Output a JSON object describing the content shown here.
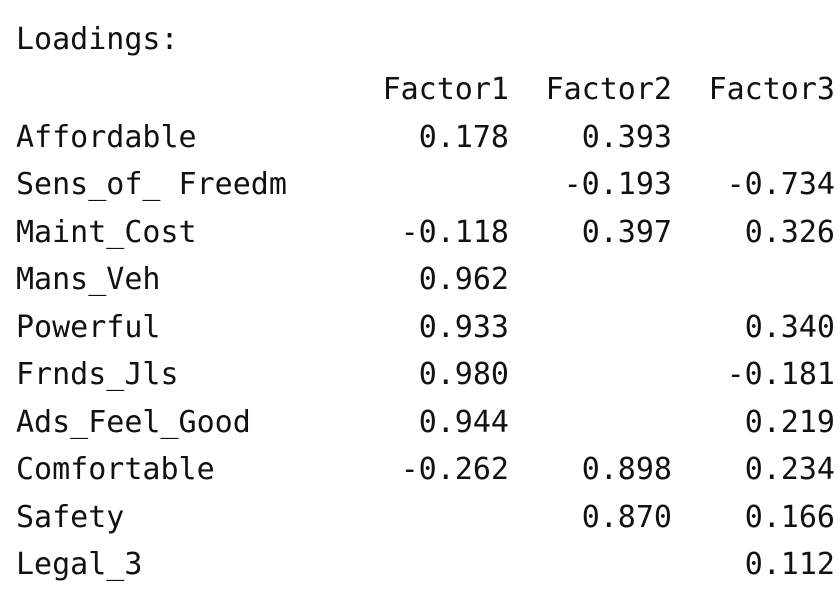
{
  "title": "Loadings:",
  "columns": [
    "Factor1",
    "Factor2",
    "Factor3"
  ],
  "rows": [
    {
      "name": "Affordable",
      "values": [
        "0.178",
        "0.393",
        ""
      ]
    },
    {
      "name": "Sens_of_ Freedm",
      "values": [
        "",
        "-0.193",
        "-0.734"
      ]
    },
    {
      "name": "Maint_Cost",
      "values": [
        "-0.118",
        "0.397",
        "0.326"
      ]
    },
    {
      "name": "Mans_Veh",
      "values": [
        "0.962",
        "",
        ""
      ]
    },
    {
      "name": "Powerful",
      "values": [
        "0.933",
        "",
        "0.340"
      ]
    },
    {
      "name": "Frnds_Jls",
      "values": [
        "0.980",
        "",
        "-0.181"
      ]
    },
    {
      "name": "Ads_Feel_Good",
      "values": [
        "0.944",
        "",
        "0.219"
      ]
    },
    {
      "name": "Comfortable",
      "values": [
        "-0.262",
        "0.898",
        "0.234"
      ]
    },
    {
      "name": "Safety",
      "values": [
        "",
        "0.870",
        "0.166"
      ]
    },
    {
      "name": "Legal_3",
      "values": [
        "",
        "",
        "0.112"
      ]
    }
  ]
}
